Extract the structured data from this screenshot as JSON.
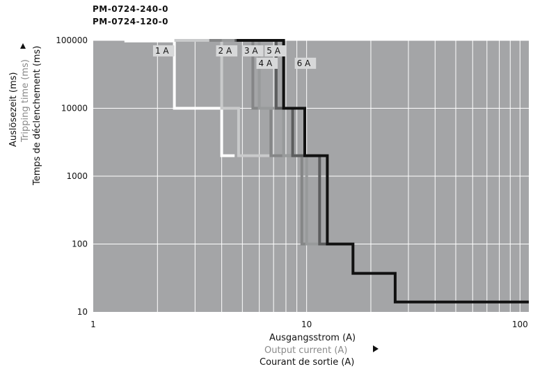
{
  "models": [
    "PM-0724-240-0",
    "PM-0724-120-0"
  ],
  "y_axis_labels": [
    {
      "text": "Auslösezeit (ms)",
      "color": "#111111"
    },
    {
      "text": "Tripping time (ms)",
      "color": "#8a8a8a"
    },
    {
      "text": "Temps de déclenchement (ms)",
      "color": "#111111"
    }
  ],
  "x_axis_labels": [
    {
      "text": "Ausgangsstrom (A)",
      "color": "#111111"
    },
    {
      "text": "Output current (A)",
      "color": "#8a8a8a"
    },
    {
      "text": "Courant de sortie (A)",
      "color": "#111111"
    }
  ],
  "colors": {
    "plot_bg": "#a4a5a7",
    "grid": "#ffffff",
    "arrow": "#111111"
  },
  "chart_data": {
    "type": "line",
    "x_scale": "log",
    "y_scale": "log",
    "xlim": [
      1,
      110
    ],
    "ylim": [
      10,
      100000
    ],
    "x_ticks": [
      1,
      10,
      100
    ],
    "x_tick_labels": [
      "1",
      "10",
      "100"
    ],
    "y_ticks": [
      10,
      100,
      1000,
      10000,
      100000
    ],
    "y_tick_labels": [
      "10",
      "100",
      "1000",
      "10000",
      "100000"
    ],
    "grid": true,
    "series": [
      {
        "name": "1 A",
        "color": "#ffffff",
        "label_at": [
          1.95,
          70000
        ],
        "points": [
          [
            1.4,
            98000
          ],
          [
            2.4,
            98000
          ],
          [
            2.4,
            10000
          ],
          [
            4.0,
            10000
          ],
          [
            4.0,
            2000
          ],
          [
            4.6,
            2000
          ]
        ]
      },
      {
        "name": "2 A",
        "color": "#c9cacb",
        "label_at": [
          3.85,
          70000
        ],
        "points": [
          [
            2.4,
            100000
          ],
          [
            4.0,
            100000
          ],
          [
            4.0,
            10000
          ],
          [
            4.8,
            10000
          ],
          [
            4.8,
            2000
          ],
          [
            7.0,
            2000
          ]
        ]
      },
      {
        "name": "3 A",
        "color": "#858687",
        "label_at": [
          5.1,
          70000
        ],
        "points": [
          [
            3.5,
            100000
          ],
          [
            5.6,
            100000
          ],
          [
            5.6,
            10000
          ],
          [
            6.8,
            10000
          ],
          [
            6.8,
            2000
          ],
          [
            9.5,
            2000
          ],
          [
            9.5,
            100
          ],
          [
            11,
            100
          ]
        ]
      },
      {
        "name": "4 A",
        "color": "#989a9b",
        "label_at": [
          5.95,
          46000
        ],
        "points": [
          [
            4.0,
            100000
          ],
          [
            6.0,
            100000
          ],
          [
            6.0,
            10000
          ],
          [
            7.8,
            10000
          ],
          [
            7.8,
            2000
          ],
          [
            10,
            2000
          ],
          [
            10,
            100
          ],
          [
            11.5,
            100
          ]
        ]
      },
      {
        "name": "5 A",
        "color": "#5c5d5e",
        "label_at": [
          6.5,
          70000
        ],
        "points": [
          [
            4.6,
            100000
          ],
          [
            7.2,
            100000
          ],
          [
            7.2,
            10000
          ],
          [
            8.6,
            10000
          ],
          [
            8.6,
            2000
          ],
          [
            11.5,
            2000
          ],
          [
            11.5,
            100
          ],
          [
            13,
            100
          ]
        ]
      },
      {
        "name": "6 A",
        "color": "#111111",
        "label_at": [
          9.0,
          46000
        ],
        "points": [
          [
            4.7,
            100000
          ],
          [
            7.8,
            100000
          ],
          [
            7.8,
            10000
          ],
          [
            9.8,
            10000
          ],
          [
            9.8,
            2000
          ],
          [
            12.5,
            2000
          ],
          [
            12.5,
            100
          ],
          [
            16.5,
            100
          ],
          [
            16.5,
            37
          ],
          [
            26,
            37
          ],
          [
            26,
            14
          ],
          [
            110,
            14
          ]
        ]
      }
    ]
  }
}
